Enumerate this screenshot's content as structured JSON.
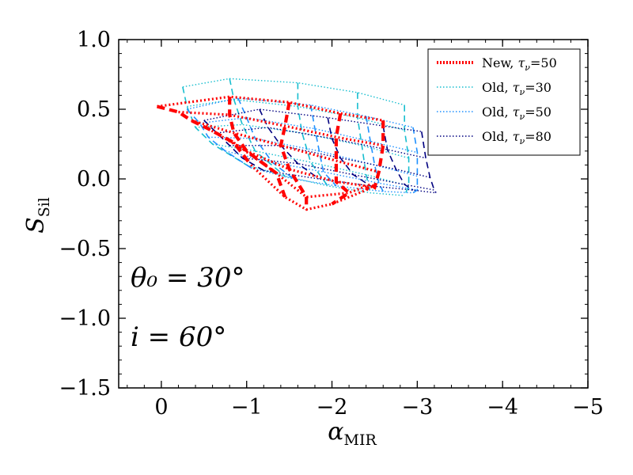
{
  "chart_data": {
    "type": "line",
    "xlabel": "α",
    "xlabel_sub": "MIR",
    "ylabel": "S",
    "ylabel_sub": "Sil",
    "xlim": [
      0.5,
      -5
    ],
    "ylim": [
      -1.5,
      1.0
    ],
    "x_ticks": [
      0,
      -1,
      -2,
      -3,
      -4,
      -5
    ],
    "x_tick_labels": [
      "0",
      "−1",
      "−2",
      "−3",
      "−4",
      "−5"
    ],
    "y_ticks": [
      1.0,
      0.5,
      0.0,
      -0.5,
      -1.0,
      -1.5
    ],
    "y_tick_labels": [
      "1.0",
      "0.5",
      "0.0",
      "−0.5",
      "−1.0",
      "−1.5"
    ],
    "annotations": [
      {
        "text": "θ₀ = 30°",
        "x": 0.18,
        "y": -0.72
      },
      {
        "text": "i = 60°",
        "x": 0.18,
        "y": -1.12
      }
    ],
    "legend_position": "top-right",
    "series": [
      {
        "name": "Old, τν=30",
        "legend_prefix": "Old, ",
        "legend_tau": "τ",
        "legend_sub": "ν",
        "legend_value": "=30",
        "color": "#17becf",
        "grid": [
          [
            [
              -0.25,
              0.66
            ],
            [
              -0.8,
              0.72
            ],
            [
              -1.6,
              0.69
            ],
            [
              -2.3,
              0.62
            ],
            [
              -2.85,
              0.53
            ]
          ],
          [
            [
              -0.3,
              0.52
            ],
            [
              -0.85,
              0.57
            ],
            [
              -1.6,
              0.52
            ],
            [
              -2.3,
              0.44
            ],
            [
              -2.85,
              0.35
            ]
          ],
          [
            [
              -0.4,
              0.37
            ],
            [
              -0.95,
              0.39
            ],
            [
              -1.65,
              0.33
            ],
            [
              -2.35,
              0.24
            ],
            [
              -2.9,
              0.15
            ]
          ],
          [
            [
              -0.6,
              0.25
            ],
            [
              -1.1,
              0.2
            ],
            [
              -1.75,
              0.12
            ],
            [
              -2.4,
              0.03
            ],
            [
              -2.9,
              -0.05
            ]
          ],
          [
            [
              -1.0,
              0.1
            ],
            [
              -1.45,
              0.02
            ],
            [
              -1.95,
              -0.05
            ],
            [
              -2.45,
              -0.1
            ],
            [
              -2.85,
              -0.12
            ]
          ]
        ]
      },
      {
        "name": "Old, τν=50",
        "legend_prefix": "Old, ",
        "legend_tau": "τ",
        "legend_sub": "ν",
        "legend_value": "=50",
        "color": "#1e90ff",
        "grid": [
          [
            [
              -0.3,
              0.5
            ],
            [
              -0.9,
              0.58
            ],
            [
              -1.75,
              0.53
            ],
            [
              -2.4,
              0.45
            ],
            [
              -2.95,
              0.37
            ]
          ],
          [
            [
              -0.45,
              0.4
            ],
            [
              -1.0,
              0.44
            ],
            [
              -1.8,
              0.36
            ],
            [
              -2.45,
              0.27
            ],
            [
              -3.0,
              0.19
            ]
          ],
          [
            [
              -0.55,
              0.3
            ],
            [
              -1.1,
              0.29
            ],
            [
              -1.85,
              0.2
            ],
            [
              -2.5,
              0.1
            ],
            [
              -3.0,
              0.02
            ]
          ],
          [
            [
              -0.75,
              0.2
            ],
            [
              -1.3,
              0.12
            ],
            [
              -1.9,
              0.05
            ],
            [
              -2.55,
              -0.03
            ],
            [
              -3.0,
              -0.08
            ]
          ],
          [
            [
              -1.05,
              0.08
            ],
            [
              -1.55,
              0.0
            ],
            [
              -2.05,
              -0.05
            ],
            [
              -2.6,
              -0.09
            ],
            [
              -2.95,
              -0.1
            ]
          ]
        ]
      },
      {
        "name": "Old, τν=80",
        "legend_prefix": "Old, ",
        "legend_tau": "τ",
        "legend_sub": "ν",
        "legend_value": "=80",
        "color": "#000080",
        "grid": [
          [
            [
              -0.5,
              0.42
            ],
            [
              -1.15,
              0.5
            ],
            [
              -1.95,
              0.44
            ],
            [
              -2.6,
              0.38
            ],
            [
              -3.05,
              0.34
            ]
          ],
          [
            [
              -0.65,
              0.33
            ],
            [
              -1.25,
              0.37
            ],
            [
              -2.0,
              0.29
            ],
            [
              -2.65,
              0.21
            ],
            [
              -3.1,
              0.15
            ]
          ],
          [
            [
              -0.8,
              0.24
            ],
            [
              -1.4,
              0.24
            ],
            [
              -2.1,
              0.15
            ],
            [
              -2.75,
              0.07
            ],
            [
              -3.15,
              0.01
            ]
          ],
          [
            [
              -0.95,
              0.15
            ],
            [
              -1.6,
              0.11
            ],
            [
              -2.25,
              0.03
            ],
            [
              -2.85,
              -0.04
            ],
            [
              -3.2,
              -0.08
            ]
          ],
          [
            [
              -1.2,
              0.06
            ],
            [
              -1.85,
              0.0
            ],
            [
              -2.45,
              -0.05
            ],
            [
              -2.95,
              -0.08
            ],
            [
              -3.22,
              -0.1
            ]
          ]
        ]
      },
      {
        "name": "New, τν=50",
        "legend_prefix": "New, ",
        "legend_tau": "τ",
        "legend_sub": "ν",
        "legend_value": "=50",
        "color": "#ff0000",
        "grid": [
          [
            [
              0.05,
              0.52
            ],
            [
              -0.8,
              0.59
            ],
            [
              -1.5,
              0.55
            ],
            [
              -2.1,
              0.47
            ],
            [
              -2.6,
              0.42
            ]
          ],
          [
            [
              -0.2,
              0.48
            ],
            [
              -0.8,
              0.46
            ],
            [
              -1.45,
              0.38
            ],
            [
              -2.05,
              0.3
            ],
            [
              -2.6,
              0.24
            ]
          ],
          [
            [
              -0.35,
              0.42
            ],
            [
              -0.85,
              0.33
            ],
            [
              -1.4,
              0.24
            ],
            [
              -2.05,
              0.13
            ],
            [
              -2.55,
              0.05
            ]
          ],
          [
            [
              -0.55,
              0.36
            ],
            [
              -1.0,
              0.2
            ],
            [
              -1.5,
              0.07
            ],
            [
              -2.05,
              -0.02
            ],
            [
              -2.5,
              -0.06
            ]
          ],
          [
            [
              -0.85,
              0.26
            ],
            [
              -1.35,
              0.04
            ],
            [
              -1.7,
              -0.13
            ],
            [
              -2.2,
              -0.1
            ],
            [
              -2.45,
              -0.04
            ]
          ],
          [
            [
              -1.05,
              0.1
            ],
            [
              -1.45,
              -0.13
            ],
            [
              -1.7,
              -0.22
            ],
            [
              -2.0,
              -0.18
            ],
            [
              -2.4,
              -0.08
            ]
          ]
        ]
      }
    ]
  }
}
